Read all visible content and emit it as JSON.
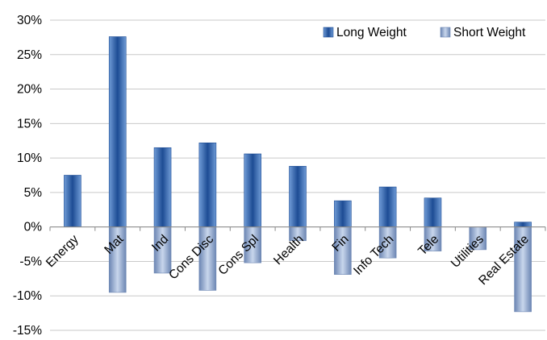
{
  "chart_data": {
    "type": "bar",
    "title": "",
    "xlabel": "",
    "ylabel": "",
    "ylim": [
      -0.15,
      0.3
    ],
    "yticks": [
      "-15%",
      "-10%",
      "-5%",
      "0%",
      "5%",
      "10%",
      "15%",
      "20%",
      "25%",
      "30%"
    ],
    "grid": true,
    "legend_position": "top-right",
    "categories": [
      "Energy",
      "Mat",
      "Ind",
      "Cons Disc",
      "Cons Spl",
      "Health",
      "Fin",
      "Info Tech",
      "Tele",
      "Utilities",
      "Real Estate"
    ],
    "series": [
      {
        "name": "Long Weight",
        "values": [
          0.075,
          0.276,
          0.115,
          0.122,
          0.106,
          0.088,
          0.038,
          0.058,
          0.042,
          0.0,
          0.007
        ]
      },
      {
        "name": "Short Weight",
        "values": [
          0.0,
          -0.095,
          -0.067,
          -0.092,
          -0.052,
          -0.02,
          -0.069,
          -0.045,
          -0.035,
          -0.033,
          -0.123
        ]
      }
    ],
    "colors": {
      "long_light": "#6f9bd6",
      "long_dark": "#1d4c94",
      "short_light": "#c8d6ec",
      "short_dark": "#6c86b3",
      "grid": "#c9c9c9",
      "axis": "#8a8a8a",
      "text": "#000000"
    }
  }
}
